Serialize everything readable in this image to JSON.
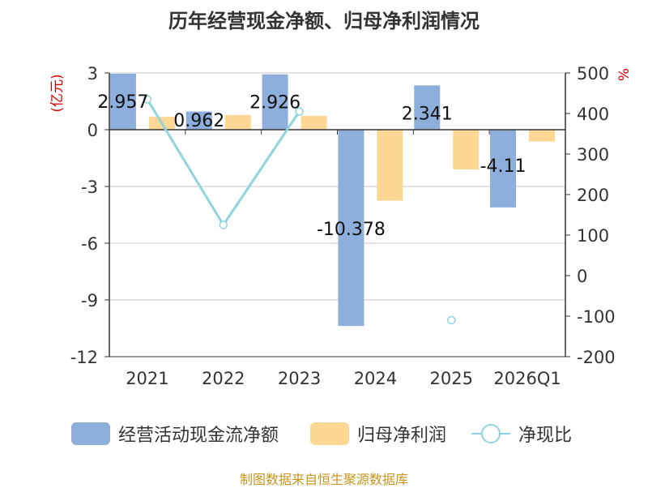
{
  "title": "历年经营现金净额、归母净利润情况",
  "source": "制图数据来自恒生聚源数据库",
  "colors": {
    "cashflow": "#8eaedb",
    "profit": "#fdd794",
    "ratio": "#8fd4dc",
    "axis": "#333333",
    "grid": "#c8c8c8",
    "left_label": "#d40000",
    "source": "#c8961e"
  },
  "legend": [
    {
      "label": "经营活动现金流净额",
      "kind": "bar",
      "color": "#8eaedb"
    },
    {
      "label": "归母净利润",
      "kind": "bar",
      "color": "#fdd794"
    },
    {
      "label": "净现比",
      "kind": "line",
      "color": "#8fd4dc"
    }
  ],
  "chart_data": {
    "type": "bar",
    "title": "历年经营现金净额、归母净利润情况",
    "categories": [
      "2021",
      "2022",
      "2023",
      "2024",
      "2025",
      "2026Q1"
    ],
    "y_left": {
      "unit_label": "(亿元)",
      "ylim": [
        -12,
        3
      ],
      "ticks": [
        "3",
        "0",
        "-3",
        "-6",
        "-9",
        "-12"
      ],
      "tick_values": [
        3,
        0,
        -3,
        -6,
        -9,
        -12
      ]
    },
    "y_right": {
      "unit_label": "%",
      "ylim": [
        -200,
        500
      ],
      "ticks": [
        "500",
        "400",
        "300",
        "200",
        "100",
        "0",
        "-100",
        "-200"
      ],
      "tick_values": [
        500,
        400,
        300,
        200,
        100,
        0,
        -100,
        -200
      ]
    },
    "grid": true,
    "legend_position": "bottom",
    "series": [
      {
        "name": "经营活动现金流净额",
        "type": "bar",
        "axis": "left",
        "values": [
          2.957,
          0.962,
          2.926,
          -10.378,
          2.341,
          -4.11
        ],
        "labels": [
          "2.957",
          "0.962",
          "2.926",
          "-10.378",
          "2.341",
          "-4.11"
        ]
      },
      {
        "name": "归母净利润",
        "type": "bar",
        "axis": "left",
        "values": [
          0.68,
          0.78,
          0.73,
          -3.75,
          -2.1,
          -0.62
        ]
      },
      {
        "name": "净现比",
        "type": "line",
        "axis": "right",
        "values": [
          435,
          125,
          405,
          null,
          -110,
          null
        ],
        "connect_gaps": false
      }
    ]
  }
}
